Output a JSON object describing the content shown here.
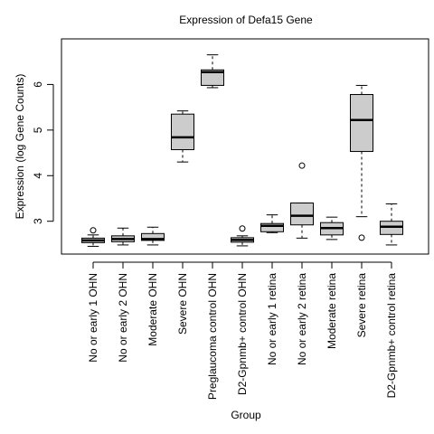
{
  "chart_data": {
    "type": "box",
    "title": "Expression of  Defa15 Gene",
    "xlabel": "Group",
    "ylabel": "Expression (log Gene Counts)",
    "ylim": [
      2.28,
      7.0
    ],
    "yticks": [
      3,
      4,
      5,
      6
    ],
    "grid": false,
    "colors": {
      "box_fill": "#cccccc",
      "stroke": "#000000",
      "background": "#ffffff"
    },
    "categories": [
      "No or early 1 OHN",
      "No or early 2 OHN",
      "Moderate OHN",
      "Severe OHN",
      "Preglaucoma control OHN",
      "D2-Gpnmb+ control OHN",
      "No or early 1 retina",
      "No or early 2 retina",
      "Moderate retina",
      "Severe retina",
      "D2-Gpnmb+ control retina"
    ],
    "boxes": [
      {
        "whisker_low": 2.45,
        "q1": 2.53,
        "median": 2.58,
        "q3": 2.63,
        "whisker_high": 2.7,
        "outliers": [
          2.8
        ]
      },
      {
        "whisker_low": 2.48,
        "q1": 2.55,
        "median": 2.61,
        "q3": 2.68,
        "whisker_high": 2.85,
        "outliers": []
      },
      {
        "whisker_low": 2.48,
        "q1": 2.58,
        "median": 2.61,
        "q3": 2.73,
        "whisker_high": 2.87,
        "outliers": []
      },
      {
        "whisker_low": 4.3,
        "q1": 4.57,
        "median": 4.84,
        "q3": 5.35,
        "whisker_high": 5.42,
        "outliers": []
      },
      {
        "whisker_low": 5.93,
        "q1": 5.98,
        "median": 6.27,
        "q3": 6.32,
        "whisker_high": 6.65,
        "outliers": []
      },
      {
        "whisker_low": 2.46,
        "q1": 2.54,
        "median": 2.59,
        "q3": 2.64,
        "whisker_high": 2.68,
        "outliers": [
          2.84
        ]
      },
      {
        "whisker_low": 2.75,
        "q1": 2.77,
        "median": 2.9,
        "q3": 2.95,
        "whisker_high": 3.14,
        "outliers": []
      },
      {
        "whisker_low": 2.63,
        "q1": 2.92,
        "median": 3.12,
        "q3": 3.4,
        "whisker_high": 3.4,
        "outliers": [
          4.22
        ]
      },
      {
        "whisker_low": 2.6,
        "q1": 2.7,
        "median": 2.85,
        "q3": 2.97,
        "whisker_high": 3.09,
        "outliers": []
      },
      {
        "whisker_low": 3.1,
        "q1": 4.53,
        "median": 5.22,
        "q3": 5.78,
        "whisker_high": 5.98,
        "outliers": [
          2.64
        ]
      },
      {
        "whisker_low": 2.48,
        "q1": 2.71,
        "median": 2.88,
        "q3": 3.0,
        "whisker_high": 3.38,
        "outliers": []
      }
    ]
  }
}
